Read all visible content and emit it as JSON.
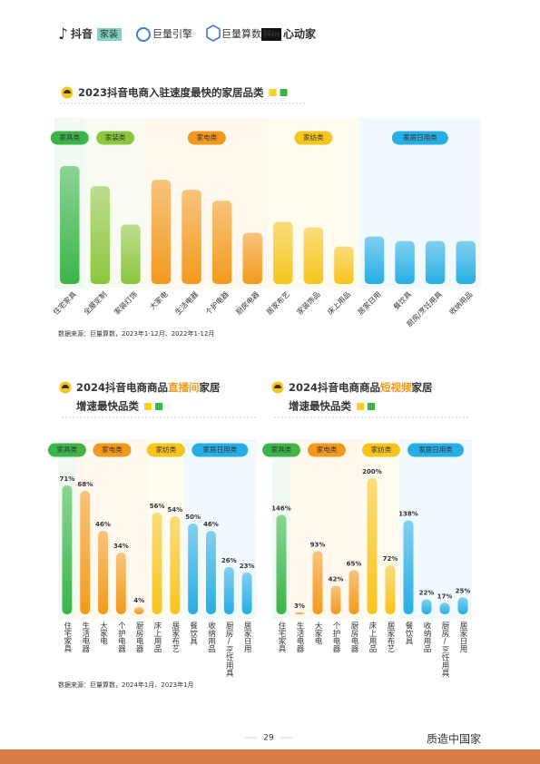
{
  "header": {
    "logos": [
      "抖音",
      "家装",
      "巨量引擎",
      "巨量算数",
      "抖in",
      "心动家"
    ]
  },
  "footer": {
    "page": "29",
    "brand": "质造中国家"
  },
  "chart_data": [
    {
      "type": "bar",
      "title": "2023抖音电商入驻速度最快的家居品类",
      "source": "数据来源：巨量算数，2023年1-12月、2022年1-12月",
      "series": [
        {
          "name": "家具类",
          "color": "#3bb54a",
          "categories": [
            "住宅家具"
          ],
          "values": [
            129
          ]
        },
        {
          "name": "家装类",
          "color": "#8dc63f",
          "categories": [
            "全屋定制",
            "家装灯饰"
          ],
          "values": [
            107,
            65
          ]
        },
        {
          "name": "家电类",
          "color": "#f39a1e",
          "categories": [
            "大家电",
            "生活电器",
            "个护电器",
            "厨房电器"
          ],
          "values": [
            114,
            103,
            91,
            56
          ]
        },
        {
          "name": "家纺类",
          "color": "#f7c51e",
          "categories": [
            "居家布艺",
            "家装饰品",
            "床上用品"
          ],
          "values": [
            68,
            62,
            41
          ]
        },
        {
          "name": "家居日用类",
          "color": "#27aee4",
          "categories": [
            "居家日用",
            "餐饮具",
            "厨房/烹饪用具",
            "收纳用品"
          ],
          "values": [
            52,
            47,
            47,
            47
          ]
        }
      ]
    },
    {
      "type": "bar",
      "title": "2024抖音电商商品",
      "title_highlight": "直播间",
      "title_suffix": "家居",
      "subtitle": "增速最快品类",
      "source": "数据来源：巨量算数，2024年1月、2023年1月",
      "series": [
        {
          "name": "家具类",
          "color": "#3bb54a",
          "categories": [
            "住宅家具"
          ],
          "values": [
            71
          ],
          "value_labels": [
            "71%"
          ]
        },
        {
          "name": "家电类",
          "color": "#f39a1e",
          "categories": [
            "生活电器",
            "大家电",
            "个护电器",
            "厨房电器"
          ],
          "values": [
            68,
            46,
            34,
            4
          ],
          "value_labels": [
            "68%",
            "46%",
            "34%",
            "4%"
          ]
        },
        {
          "name": "家纺类",
          "color": "#f7c51e",
          "categories": [
            "床上用品",
            "居家布艺"
          ],
          "values": [
            56,
            54
          ],
          "value_labels": [
            "56%",
            "54%"
          ]
        },
        {
          "name": "家居日用类",
          "color": "#27aee4",
          "categories": [
            "餐饮具",
            "收纳用品",
            "厨房/烹饪用具",
            "居家日用"
          ],
          "values": [
            50,
            46,
            26,
            23
          ],
          "value_labels": [
            "50%",
            "46%",
            "26%",
            "23%"
          ]
        }
      ]
    },
    {
      "type": "bar",
      "title": "2024抖音电商商品",
      "title_highlight": "短视频",
      "title_suffix": "家居",
      "subtitle": "增速最快品类",
      "series": [
        {
          "name": "家具类",
          "color": "#3bb54a",
          "categories": [
            "住宅家具"
          ],
          "values": [
            146
          ],
          "value_labels": [
            "146%"
          ]
        },
        {
          "name": "家电类",
          "color": "#f39a1e",
          "categories": [
            "生活电器",
            "大家电",
            "个护电器",
            "厨房电器"
          ],
          "values": [
            3,
            93,
            42,
            65
          ],
          "value_labels": [
            "3%",
            "93%",
            "42%",
            "65%"
          ]
        },
        {
          "name": "家纺类",
          "color": "#f7c51e",
          "categories": [
            "床上用品",
            "居家布艺"
          ],
          "values": [
            200,
            72
          ],
          "value_labels": [
            "200%",
            "72%"
          ]
        },
        {
          "name": "家居日用类",
          "color": "#27aee4",
          "categories": [
            "餐饮具",
            "收纳用品",
            "厨房/烹饪用具",
            "居家日用"
          ],
          "values": [
            138,
            22,
            17,
            25
          ],
          "value_labels": [
            "138%",
            "22%",
            "17%",
            "25%"
          ]
        }
      ]
    }
  ]
}
